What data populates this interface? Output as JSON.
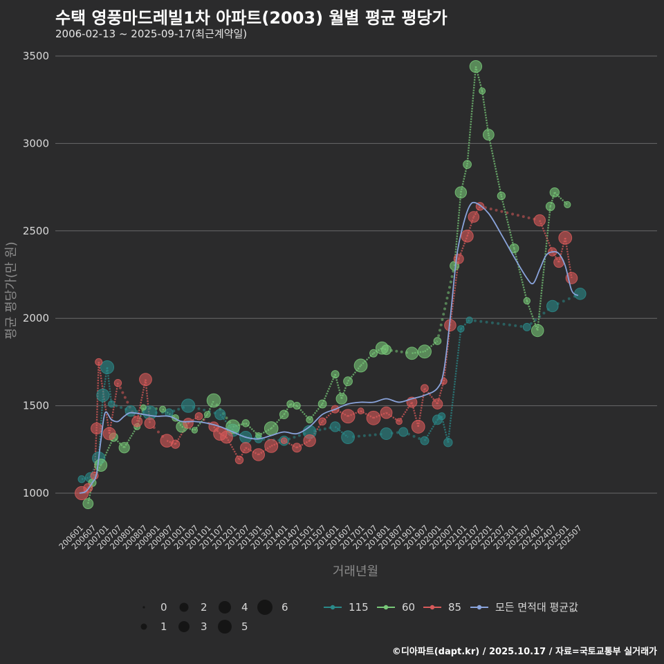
{
  "chart_data": {
    "type": "scatter",
    "title": "수택 영풍마드레빌1차 아파트(2003) 월별 평균 평당가",
    "subtitle": "2006-02-13 ~ 2025-09-17(최근계약일)",
    "xlabel": "거래년월",
    "ylabel": "평균 평당가(만 원)",
    "ylim": [
      800,
      3600
    ],
    "yticks": [
      1000,
      1500,
      2000,
      2500,
      3000,
      3500
    ],
    "xticks": [
      "200601",
      "200607",
      "200701",
      "200707",
      "200801",
      "200807",
      "200901",
      "200907",
      "201001",
      "201007",
      "201101",
      "201107",
      "201201",
      "201207",
      "201301",
      "201307",
      "201401",
      "201407",
      "201501",
      "201507",
      "201601",
      "201607",
      "201701",
      "201707",
      "201801",
      "201807",
      "201901",
      "201907",
      "202001",
      "202007",
      "202101",
      "202107",
      "202201",
      "202207",
      "202301",
      "202307",
      "202401",
      "202407",
      "202501",
      "202507"
    ],
    "size_legend": [
      0,
      1,
      2,
      3,
      4,
      5,
      6
    ],
    "colors": {
      "115": "#2a8a8a",
      "60": "#78c878",
      "85": "#d85a5a",
      "avg": "#8aa4dc",
      "grid": "#6a6a6a",
      "text": "#d8d8d8"
    },
    "series": [
      {
        "name": "115",
        "key": "115",
        "points": [
          [
            "200602",
            1080
          ],
          [
            "200606",
            1090
          ],
          [
            "200610",
            1200
          ],
          [
            "200612",
            1560
          ],
          [
            "200702",
            1720
          ],
          [
            "200704",
            1510
          ],
          [
            "200801",
            1470
          ],
          [
            "200810",
            1460
          ],
          [
            "200907",
            1460
          ],
          [
            "201004",
            1500
          ],
          [
            "201107",
            1450
          ],
          [
            "201201",
            1360
          ],
          [
            "201207",
            1320
          ],
          [
            "201301",
            1310
          ],
          [
            "201401",
            1300
          ],
          [
            "201501",
            1350
          ],
          [
            "201601",
            1380
          ],
          [
            "201607",
            1320
          ],
          [
            "201801",
            1340
          ],
          [
            "201809",
            1350
          ],
          [
            "201907",
            1300
          ],
          [
            "202001",
            1420
          ],
          [
            "202003",
            1440
          ],
          [
            "202006",
            1290
          ],
          [
            "202012",
            1940
          ],
          [
            "202104",
            1990
          ],
          [
            "202307",
            1950
          ],
          [
            "202407",
            2070
          ],
          [
            "202508",
            2140
          ]
        ]
      },
      {
        "name": "60",
        "key": "60",
        "points": [
          [
            "200605",
            940
          ],
          [
            "200607",
            1060
          ],
          [
            "200611",
            1160
          ],
          [
            "200705",
            1320
          ],
          [
            "200710",
            1260
          ],
          [
            "200804",
            1380
          ],
          [
            "200807",
            1490
          ],
          [
            "200904",
            1480
          ],
          [
            "200910",
            1430
          ],
          [
            "201001",
            1380
          ],
          [
            "201007",
            1360
          ],
          [
            "201101",
            1450
          ],
          [
            "201104",
            1530
          ],
          [
            "201201",
            1380
          ],
          [
            "201207",
            1400
          ],
          [
            "201301",
            1330
          ],
          [
            "201307",
            1370
          ],
          [
            "201401",
            1450
          ],
          [
            "201404",
            1510
          ],
          [
            "201407",
            1500
          ],
          [
            "201501",
            1420
          ],
          [
            "201507",
            1510
          ],
          [
            "201601",
            1680
          ],
          [
            "201604",
            1540
          ],
          [
            "201607",
            1640
          ],
          [
            "201701",
            1730
          ],
          [
            "201707",
            1800
          ],
          [
            "201711",
            1830
          ],
          [
            "201801",
            1820
          ],
          [
            "201901",
            1800
          ],
          [
            "201907",
            1810
          ],
          [
            "202001",
            1870
          ],
          [
            "202009",
            2300
          ],
          [
            "202012",
            2720
          ],
          [
            "202103",
            2880
          ],
          [
            "202107",
            3440
          ],
          [
            "202110",
            3300
          ],
          [
            "202201",
            3050
          ],
          [
            "202207",
            2700
          ],
          [
            "202301",
            2400
          ],
          [
            "202307",
            2100
          ],
          [
            "202312",
            1930
          ],
          [
            "202406",
            2640
          ],
          [
            "202408",
            2720
          ],
          [
            "202502",
            2650
          ]
        ]
      },
      {
        "name": "85",
        "key": "85",
        "points": [
          [
            "200602",
            1000
          ],
          [
            "200605",
            1030
          ],
          [
            "200608",
            1100
          ],
          [
            "200609",
            1370
          ],
          [
            "200610",
            1750
          ],
          [
            "200703",
            1340
          ],
          [
            "200707",
            1630
          ],
          [
            "200804",
            1410
          ],
          [
            "200808",
            1650
          ],
          [
            "200810",
            1400
          ],
          [
            "200906",
            1300
          ],
          [
            "200910",
            1280
          ],
          [
            "201004",
            1400
          ],
          [
            "201009",
            1440
          ],
          [
            "201104",
            1380
          ],
          [
            "201107",
            1340
          ],
          [
            "201110",
            1320
          ],
          [
            "201204",
            1190
          ],
          [
            "201207",
            1260
          ],
          [
            "201301",
            1220
          ],
          [
            "201307",
            1270
          ],
          [
            "201401",
            1300
          ],
          [
            "201407",
            1260
          ],
          [
            "201501",
            1300
          ],
          [
            "201507",
            1410
          ],
          [
            "201601",
            1480
          ],
          [
            "201607",
            1440
          ],
          [
            "201701",
            1470
          ],
          [
            "201707",
            1430
          ],
          [
            "201801",
            1460
          ],
          [
            "201807",
            1410
          ],
          [
            "201901",
            1520
          ],
          [
            "201904",
            1380
          ],
          [
            "201907",
            1600
          ],
          [
            "202001",
            1510
          ],
          [
            "202004",
            1640
          ],
          [
            "202007",
            1960
          ],
          [
            "202011",
            2340
          ],
          [
            "202103",
            2470
          ],
          [
            "202106",
            2580
          ],
          [
            "202109",
            2640
          ],
          [
            "202401",
            2560
          ],
          [
            "202407",
            2380
          ],
          [
            "202410",
            2320
          ],
          [
            "202501",
            2460
          ],
          [
            "202504",
            2230
          ]
        ]
      }
    ],
    "average": {
      "name": "모든 면적대 평균값",
      "points": [
        [
          "200601",
          1000
        ],
        [
          "200604",
          1010
        ],
        [
          "200607",
          1060
        ],
        [
          "200609",
          1110
        ],
        [
          "200611",
          1300
        ],
        [
          "200701",
          1460
        ],
        [
          "200704",
          1420
        ],
        [
          "200707",
          1410
        ],
        [
          "200710",
          1440
        ],
        [
          "200801",
          1460
        ],
        [
          "200807",
          1450
        ],
        [
          "200901",
          1440
        ],
        [
          "200907",
          1440
        ],
        [
          "201001",
          1410
        ],
        [
          "201007",
          1410
        ],
        [
          "201101",
          1400
        ],
        [
          "201107",
          1380
        ],
        [
          "201201",
          1350
        ],
        [
          "201207",
          1320
        ],
        [
          "201301",
          1310
        ],
        [
          "201307",
          1330
        ],
        [
          "201401",
          1350
        ],
        [
          "201407",
          1340
        ],
        [
          "201501",
          1380
        ],
        [
          "201507",
          1450
        ],
        [
          "201601",
          1480
        ],
        [
          "201607",
          1510
        ],
        [
          "201701",
          1520
        ],
        [
          "201707",
          1520
        ],
        [
          "201801",
          1540
        ],
        [
          "201807",
          1520
        ],
        [
          "201901",
          1540
        ],
        [
          "201907",
          1560
        ],
        [
          "202001",
          1600
        ],
        [
          "202004",
          1700
        ],
        [
          "202007",
          2000
        ],
        [
          "202010",
          2350
        ],
        [
          "202101",
          2530
        ],
        [
          "202104",
          2640
        ],
        [
          "202107",
          2660
        ],
        [
          "202201",
          2600
        ],
        [
          "202207",
          2480
        ],
        [
          "202301",
          2350
        ],
        [
          "202307",
          2230
        ],
        [
          "202310",
          2200
        ],
        [
          "202401",
          2280
        ],
        [
          "202404",
          2360
        ],
        [
          "202407",
          2380
        ],
        [
          "202410",
          2370
        ],
        [
          "202501",
          2300
        ],
        [
          "202504",
          2160
        ],
        [
          "202507",
          2130
        ]
      ]
    },
    "legend_series_labels": [
      "115",
      "60",
      "85",
      "모든 면적대 평균값"
    ]
  },
  "credit": "©디아파트(dapt.kr) / 2025.10.17 / 자료=국토교통부 실거래가"
}
